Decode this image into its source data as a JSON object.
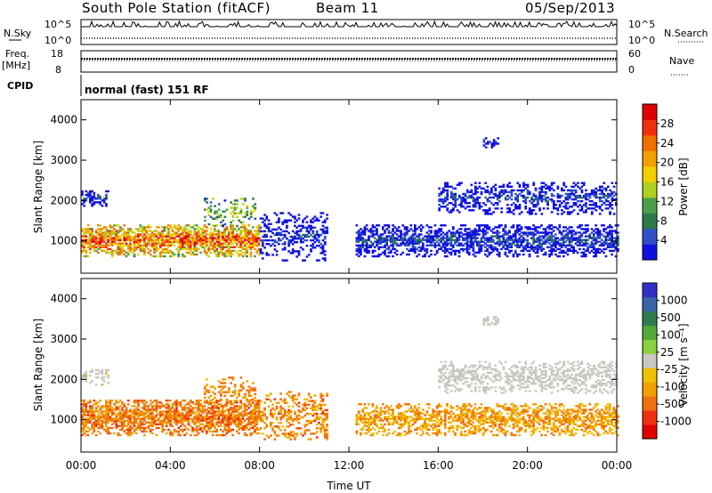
{
  "header": {
    "station": "South Pole Station (fitACF)",
    "beam": "Beam 11",
    "date": "05/Sep/2013"
  },
  "strip_panels": {
    "nsky_label": "N.Sky",
    "nsky_ticks": [
      "10^5",
      "10^0"
    ],
    "nsearch_label": "N.Search",
    "nsearch_ticks": [
      "10^5",
      "10^0"
    ],
    "freq_label": "Freq.",
    "freq_unit": "[MHz]",
    "freq_ticks": [
      "18",
      "8"
    ],
    "nave_label": "Nave",
    "nave_ticks": [
      "60",
      "0"
    ],
    "cpid_label": "CPID",
    "cpid_text": "normal (fast) 151 RF"
  },
  "colors": {
    "power": [
      "#1010e0",
      "#3050c8",
      "#2a7a4a",
      "#4aa04a",
      "#b0d020",
      "#f0d000",
      "#f0a000",
      "#f07000",
      "#f03010",
      "#e00000"
    ],
    "velocity": [
      "#3030c8",
      "#3a66a8",
      "#2e7d52",
      "#54a83a",
      "#8ad040",
      "#c8c8c0",
      "#f0c000",
      "#f0a000",
      "#f07010",
      "#f03010",
      "#e00000"
    ]
  },
  "chart_data": [
    {
      "type": "heatmap",
      "quantity": "power",
      "ylabel": "Slant Range [km]",
      "ylim": [
        200,
        4500
      ],
      "yticks": [
        "1000",
        "2000",
        "3000",
        "4000"
      ],
      "xlim": [
        0,
        24
      ],
      "colorbar": {
        "label": "Power [dB]",
        "range": [
          0,
          32
        ],
        "ticks": [
          "4",
          "8",
          "12",
          "16",
          "20",
          "24",
          "28"
        ]
      },
      "regions": [
        {
          "t0": 0.0,
          "t1": 8.0,
          "r0": 600,
          "r1": 1400,
          "level": 0.75,
          "spread": 0.25,
          "density": 0.9
        },
        {
          "t0": 0.0,
          "t1": 1.2,
          "r0": 1850,
          "r1": 2250,
          "level": 0.15,
          "spread": 0.12,
          "density": 0.55
        },
        {
          "t0": 5.5,
          "t1": 7.8,
          "r0": 1350,
          "r1": 2050,
          "level": 0.45,
          "spread": 0.2,
          "density": 0.35
        },
        {
          "t0": 8.0,
          "t1": 11.0,
          "r0": 500,
          "r1": 1700,
          "level": 0.12,
          "spread": 0.12,
          "density": 0.5
        },
        {
          "t0": 12.3,
          "t1": 24.0,
          "r0": 600,
          "r1": 1400,
          "level": 0.15,
          "spread": 0.15,
          "density": 0.75
        },
        {
          "t0": 16.0,
          "t1": 24.0,
          "r0": 1650,
          "r1": 2450,
          "level": 0.14,
          "spread": 0.12,
          "density": 0.55
        },
        {
          "t0": 18.0,
          "t1": 18.7,
          "r0": 3300,
          "r1": 3550,
          "level": 0.15,
          "spread": 0.1,
          "density": 0.6
        }
      ]
    },
    {
      "type": "heatmap",
      "quantity": "velocity",
      "ylabel": "Slant Range [km]",
      "ylim": [
        200,
        4500
      ],
      "yticks": [
        "1000",
        "2000",
        "3000",
        "4000"
      ],
      "xlabel": "Time UT",
      "xlim": [
        0,
        24
      ],
      "xticks": [
        "00:00",
        "04:00",
        "08:00",
        "12:00",
        "16:00",
        "20:00",
        "00:00"
      ],
      "colorbar": {
        "label": "Velocity [m s⁻¹]",
        "ticks": [
          "1000",
          "500",
          "100",
          "25",
          "-25",
          "-100",
          "-500",
          "-1000"
        ]
      },
      "regions": [
        {
          "t0": 0.0,
          "t1": 8.0,
          "r0": 600,
          "r1": 1500,
          "level": 0.75,
          "spread": 0.1,
          "density": 0.85
        },
        {
          "t0": 0.0,
          "t1": 1.2,
          "r0": 1850,
          "r1": 2250,
          "level": 0.5,
          "spread": 0.05,
          "density": 0.5
        },
        {
          "t0": 5.5,
          "t1": 7.8,
          "r0": 1350,
          "r1": 2050,
          "level": 0.72,
          "spread": 0.1,
          "density": 0.35
        },
        {
          "t0": 8.0,
          "t1": 11.0,
          "r0": 500,
          "r1": 1700,
          "level": 0.72,
          "spread": 0.12,
          "density": 0.5
        },
        {
          "t0": 12.3,
          "t1": 24.0,
          "r0": 600,
          "r1": 1400,
          "level": 0.68,
          "spread": 0.12,
          "density": 0.7
        },
        {
          "t0": 16.0,
          "t1": 24.0,
          "r0": 1650,
          "r1": 2450,
          "level": 0.5,
          "spread": 0.04,
          "density": 0.55
        },
        {
          "t0": 18.0,
          "t1": 18.7,
          "r0": 3300,
          "r1": 3550,
          "level": 0.5,
          "spread": 0.04,
          "density": 0.6
        }
      ]
    }
  ]
}
